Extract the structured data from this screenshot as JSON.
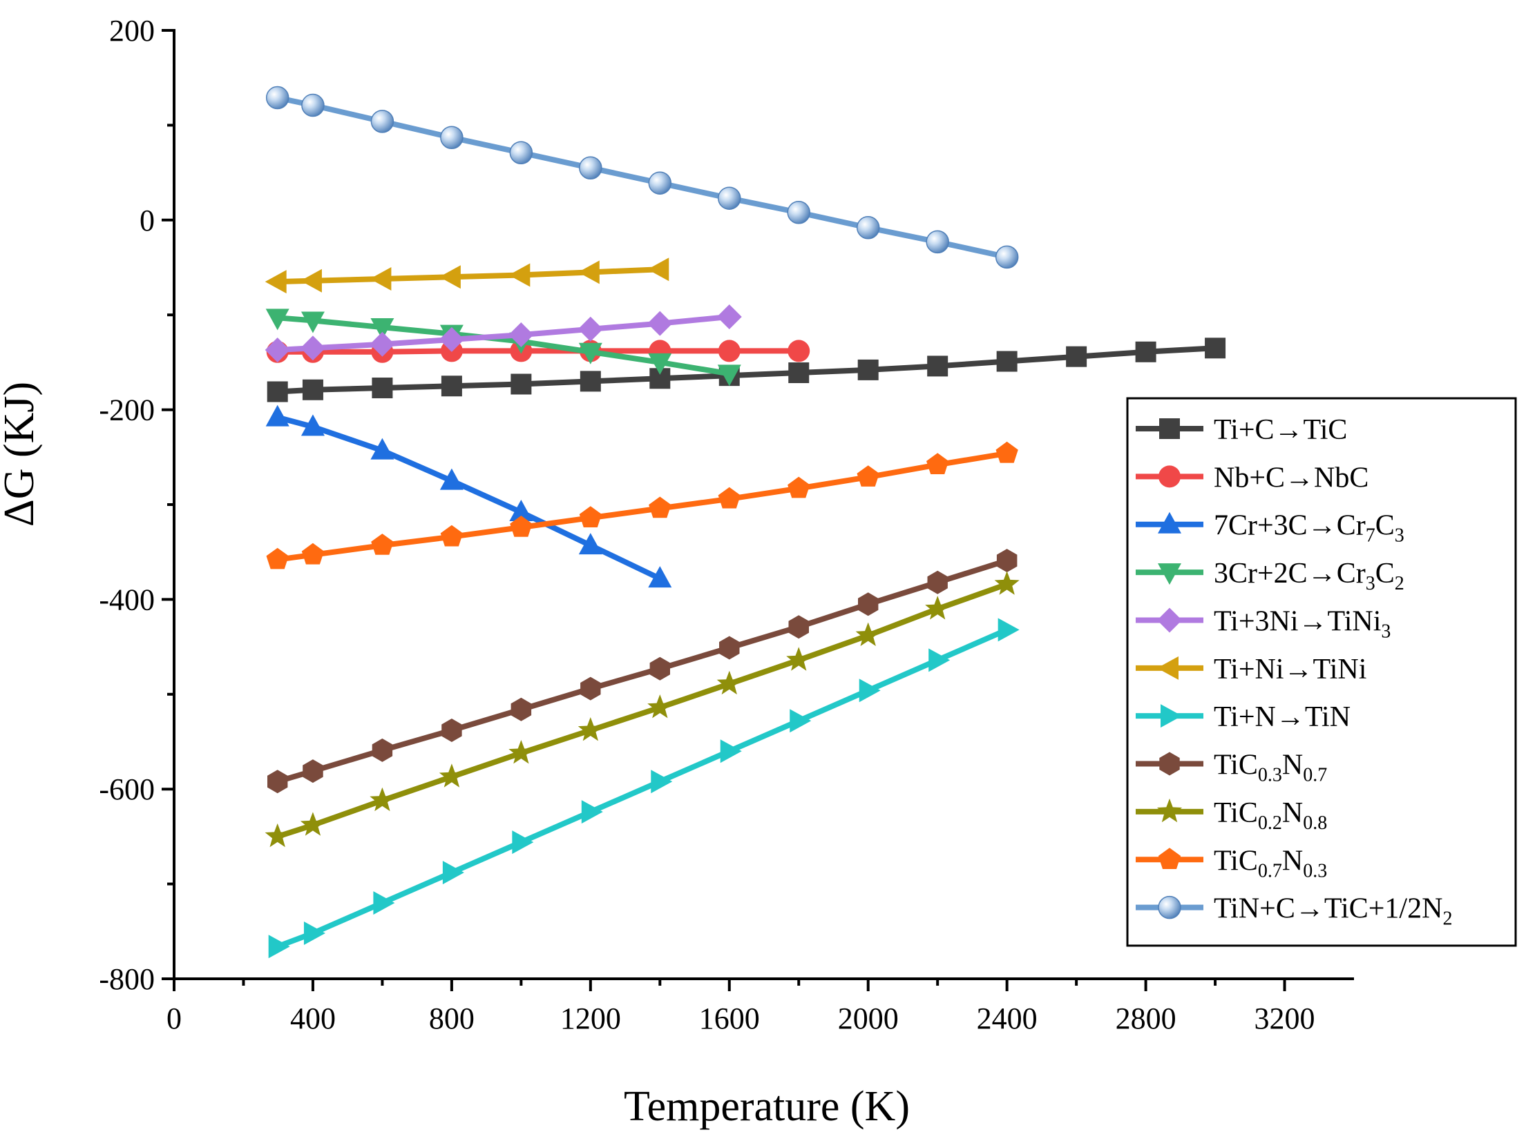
{
  "chart_data": {
    "type": "line",
    "title": "",
    "xlabel": "Temperature (K)",
    "ylabel": "ΔG (KJ)",
    "xlim": [
      0,
      3400
    ],
    "ylim": [
      -800,
      200
    ],
    "xticks": [
      0,
      400,
      800,
      1200,
      1600,
      2000,
      2400,
      2800,
      3200
    ],
    "yticks": [
      200,
      0,
      -200,
      -400,
      -600,
      -800
    ],
    "xtick_labels": [
      "0",
      "400",
      "800",
      "1200",
      "1600",
      "2000",
      "2400",
      "2800",
      "3200"
    ],
    "ytick_labels": [
      "200",
      "0",
      "-200",
      "-400",
      "-600",
      "-800"
    ],
    "legend_position": "right",
    "series": [
      {
        "name": "Ti+C→TiC",
        "legend": [
          {
            "t": " Ti+C→TiC"
          }
        ],
        "color": "#404040",
        "marker": "square",
        "x": [
          298,
          400,
          600,
          800,
          1000,
          1200,
          1400,
          1600,
          1800,
          2000,
          2200,
          2400,
          2600,
          2800,
          3000
        ],
        "y": [
          -181,
          -179,
          -177,
          -175,
          -173,
          -170,
          -167,
          -164,
          -161,
          -158,
          -154,
          -149,
          -144,
          -139,
          -135
        ]
      },
      {
        "name": "Nb+C→NbC",
        "legend": [
          {
            "t": "Nb+C→NbC"
          }
        ],
        "color": "#f04848",
        "marker": "circle",
        "x": [
          298,
          400,
          600,
          800,
          1000,
          1200,
          1400,
          1600,
          1800
        ],
        "y": [
          -139,
          -139,
          -139,
          -138,
          -138,
          -138,
          -138,
          -138,
          -138
        ]
      },
      {
        "name": "7Cr+3C→Cr7C3",
        "legend": [
          {
            "t": "7Cr+3C→Cr"
          },
          {
            "t": "7",
            "s": "sub"
          },
          {
            "t": "C"
          },
          {
            "t": "3",
            "s": "sub"
          }
        ],
        "color": "#1f6fe0",
        "marker": "triangle-up",
        "x": [
          298,
          400,
          600,
          800,
          1000,
          1200,
          1400
        ],
        "y": [
          -208,
          -218,
          -243,
          -275,
          -308,
          -343,
          -378
        ]
      },
      {
        "name": "3Cr+2C→Cr3C2",
        "legend": [
          {
            "t": "3Cr+2C→Cr"
          },
          {
            "t": "3",
            "s": "sub"
          },
          {
            "t": "C"
          },
          {
            "t": "2",
            "s": "sub"
          }
        ],
        "color": "#3cb371",
        "marker": "triangle-down",
        "x": [
          298,
          400,
          600,
          800,
          1000,
          1200,
          1400,
          1600
        ],
        "y": [
          -103,
          -106,
          -113,
          -120,
          -128,
          -139,
          -150,
          -162
        ]
      },
      {
        "name": "Ti+3Ni→TiNi3",
        "legend": [
          {
            "t": "Ti+3Ni→TiNi"
          },
          {
            "t": "3",
            "s": "sub"
          }
        ],
        "color": "#b07ae0",
        "marker": "diamond",
        "x": [
          298,
          400,
          600,
          800,
          1000,
          1200,
          1400,
          1600
        ],
        "y": [
          -137,
          -135,
          -131,
          -126,
          -121,
          -115,
          -109,
          -102
        ]
      },
      {
        "name": "Ti+Ni→TiNi",
        "legend": [
          {
            "t": "Ti+Ni→TiNi"
          }
        ],
        "color": "#d4a00f",
        "marker": "triangle-left",
        "x": [
          298,
          400,
          600,
          800,
          1000,
          1200,
          1400
        ],
        "y": [
          -65,
          -64,
          -62,
          -60,
          -58,
          -55,
          -52
        ]
      },
      {
        "name": "Ti+N→TiN",
        "legend": [
          {
            "t": "Ti+N→TiN"
          }
        ],
        "color": "#22c8c8",
        "marker": "triangle-right",
        "x": [
          298,
          400,
          600,
          800,
          1000,
          1200,
          1400,
          1600,
          1800,
          2000,
          2200,
          2400
        ],
        "y": [
          -766,
          -752,
          -720,
          -688,
          -656,
          -624,
          -592,
          -560,
          -528,
          -496,
          -464,
          -432
        ]
      },
      {
        "name": "TiC0.3N0.7",
        "legend": [
          {
            "t": "TiC"
          },
          {
            "t": "0.3",
            "s": "sub"
          },
          {
            "t": "N"
          },
          {
            "t": "0.7",
            "s": "sub"
          }
        ],
        "color": "#7a4a3c",
        "marker": "hexagon",
        "x": [
          298,
          400,
          600,
          800,
          1000,
          1200,
          1400,
          1600,
          1800,
          2000,
          2200,
          2400
        ],
        "y": [
          -592,
          -581,
          -559,
          -538,
          -516,
          -494,
          -473,
          -451,
          -429,
          -405,
          -382,
          -359
        ]
      },
      {
        "name": "TiC0.2N0.8",
        "legend": [
          {
            "t": "TiC"
          },
          {
            "t": "0.2",
            "s": "sub"
          },
          {
            "t": "N"
          },
          {
            "t": "0.8",
            "s": "sub"
          }
        ],
        "color": "#8f8f0a",
        "marker": "star",
        "x": [
          298,
          400,
          600,
          800,
          1000,
          1200,
          1400,
          1600,
          1800,
          2000,
          2200,
          2400
        ],
        "y": [
          -650,
          -638,
          -612,
          -587,
          -562,
          -538,
          -514,
          -489,
          -464,
          -438,
          -410,
          -384
        ]
      },
      {
        "name": "TiC0.7N0.3",
        "legend": [
          {
            "t": "TiC"
          },
          {
            "t": "0.7",
            "s": "sub"
          },
          {
            "t": "N"
          },
          {
            "t": "0.3",
            "s": "sub"
          }
        ],
        "color": "#ff6a10",
        "marker": "pentagon",
        "x": [
          298,
          400,
          600,
          800,
          1000,
          1200,
          1400,
          1600,
          1800,
          2000,
          2200,
          2400
        ],
        "y": [
          -358,
          -353,
          -343,
          -334,
          -324,
          -314,
          -304,
          -294,
          -283,
          -271,
          -258,
          -246
        ]
      },
      {
        "name": "TiN+C→TiC+1/2N2",
        "legend": [
          {
            "t": "TiN+C→TiC+1/2N"
          },
          {
            "t": "2",
            "s": "sub"
          }
        ],
        "color": "#6a9cd0",
        "marker": "sphere",
        "x": [
          298,
          400,
          600,
          800,
          1000,
          1200,
          1400,
          1600,
          1800,
          2000,
          2200,
          2400
        ],
        "y": [
          129,
          121,
          104,
          87,
          71,
          55,
          39,
          23,
          8,
          -8,
          -23,
          -39
        ]
      }
    ]
  }
}
